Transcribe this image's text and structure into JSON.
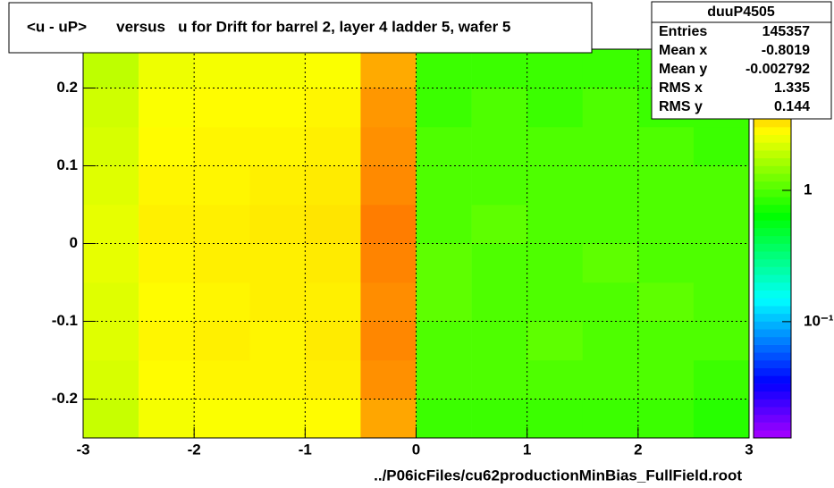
{
  "chart_data": {
    "type": "heatmap",
    "title": "<u - uP>       versus   u for Drift for barrel 2, layer 4 ladder 5, wafer 5",
    "footer": "../P06icFiles/cu62productionMinBias_FullField.root",
    "xbins": [
      -3,
      -2.5,
      -2,
      -1.5,
      -1,
      -0.5,
      0,
      0.5,
      1,
      1.5,
      2,
      2.5,
      3
    ],
    "ybins": [
      -0.25,
      -0.2,
      -0.15,
      -0.1,
      -0.05,
      0,
      0.05,
      0.1,
      0.15,
      0.2,
      0.25
    ],
    "z": [
      [
        2.0,
        2.6,
        2.7,
        2.7,
        2.8,
        4.6,
        0.9,
        0.9,
        0.9,
        0.9,
        0.9,
        0.8
      ],
      [
        2.2,
        2.8,
        2.9,
        2.9,
        3.0,
        5.2,
        1.0,
        1.0,
        1.0,
        1.0,
        1.0,
        0.9
      ],
      [
        2.3,
        2.9,
        3.0,
        2.9,
        3.1,
        5.5,
        1.0,
        1.0,
        1.1,
        1.0,
        1.0,
        1.0
      ],
      [
        2.3,
        2.8,
        2.9,
        3.0,
        3.0,
        5.3,
        1.1,
        1.0,
        1.0,
        1.0,
        1.1,
        1.0
      ],
      [
        2.4,
        2.9,
        3.0,
        3.0,
        3.1,
        5.6,
        1.1,
        1.0,
        1.0,
        1.1,
        1.0,
        1.0
      ],
      [
        2.4,
        3.0,
        3.0,
        3.1,
        3.2,
        5.8,
        1.0,
        1.1,
        1.0,
        1.0,
        1.0,
        1.0
      ],
      [
        2.3,
        2.9,
        2.9,
        3.0,
        3.1,
        5.4,
        1.0,
        1.0,
        1.0,
        1.0,
        1.0,
        1.0
      ],
      [
        2.2,
        2.8,
        2.9,
        2.9,
        3.0,
        5.2,
        1.0,
        1.0,
        1.0,
        1.0,
        1.0,
        0.9
      ],
      [
        2.1,
        2.7,
        2.8,
        2.8,
        2.9,
        5.0,
        0.9,
        1.0,
        0.9,
        1.0,
        0.9,
        0.9
      ],
      [
        1.9,
        2.5,
        2.6,
        2.6,
        2.7,
        4.5,
        0.9,
        0.9,
        0.9,
        0.9,
        0.9,
        0.8
      ]
    ],
    "xlim": [
      -3,
      3
    ],
    "xticks": [
      -3,
      -2,
      -1,
      0,
      1,
      2,
      3
    ],
    "ylim": [
      -0.25,
      0.25
    ],
    "yticks": [
      -0.2,
      -0.1,
      0,
      0.1,
      0.2
    ],
    "zlim": [
      0.013,
      11.9
    ],
    "zlog": true,
    "zticks": [
      1,
      {
        "value": 0.1,
        "label": "10⁻¹"
      }
    ],
    "grid": true,
    "stats": {
      "title": "duuP4505",
      "rows": [
        {
          "name": "Entries",
          "value": 145357
        },
        {
          "name": "Mean x",
          "value": -0.8019
        },
        {
          "name": "Mean y",
          "value": -0.002792
        },
        {
          "name": "RMS x",
          "value": 1.335
        },
        {
          "name": "RMS y",
          "value": 0.144
        }
      ]
    }
  }
}
